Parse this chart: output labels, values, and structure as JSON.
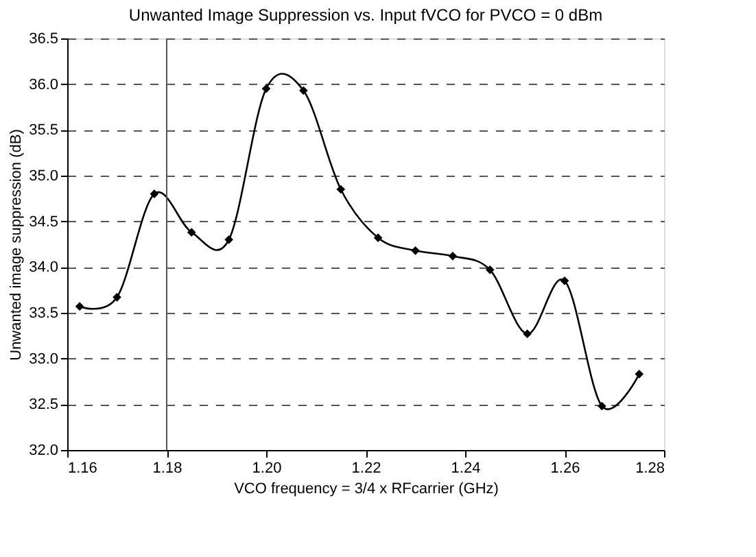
{
  "chart_data": {
    "type": "line",
    "title": "Unwanted Image Suppression vs. Input fVCO for PVCO = 0 dBm",
    "xlabel": "VCO frequency = 3/4 x RFcarrier (GHz)",
    "ylabel": "Unwanted image suppression (dB)",
    "x": [
      1.1625,
      1.17,
      1.1775,
      1.185,
      1.1925,
      1.2,
      1.2075,
      1.215,
      1.2225,
      1.23,
      1.2375,
      1.245,
      1.2525,
      1.26,
      1.2675,
      1.275
    ],
    "series": [
      {
        "color": "#000000",
        "values": [
          33.57,
          33.67,
          34.8,
          34.38,
          34.3,
          35.95,
          35.93,
          34.85,
          34.32,
          34.18,
          34.12,
          33.97,
          33.27,
          33.85,
          32.48,
          32.83
        ]
      }
    ],
    "xlim": [
      1.16,
      1.28
    ],
    "xticks": [
      {
        "value": 1.16,
        "label": "1.16"
      },
      {
        "value": 1.18,
        "label": "1.18"
      },
      {
        "value": 1.2,
        "label": "1.20"
      },
      {
        "value": 1.22,
        "label": "1.22"
      },
      {
        "value": 1.24,
        "label": "1.24"
      },
      {
        "value": 1.26,
        "label": "1.26"
      },
      {
        "value": 1.28,
        "label": "1.28"
      }
    ],
    "ylim": [
      32.0,
      36.5
    ],
    "yticks": [
      {
        "value": 32.0,
        "label": "32.0"
      },
      {
        "value": 32.5,
        "label": "32.5"
      },
      {
        "value": 33.0,
        "label": "33.0"
      },
      {
        "value": 33.5,
        "label": "33.5"
      },
      {
        "value": 34.0,
        "label": "34.0"
      },
      {
        "value": 34.5,
        "label": "34.5"
      },
      {
        "value": 35.0,
        "label": "35.0"
      },
      {
        "value": 35.5,
        "label": "35.5"
      },
      {
        "value": 36.0,
        "label": "36.0"
      },
      {
        "value": 36.5,
        "label": "36.5"
      }
    ],
    "ref_lines": [
      {
        "axis": "x",
        "value": 1.18,
        "color": "#555555",
        "line_style": "solid"
      }
    ],
    "grid": "y",
    "marker": "diamond",
    "line_style": "solid"
  }
}
